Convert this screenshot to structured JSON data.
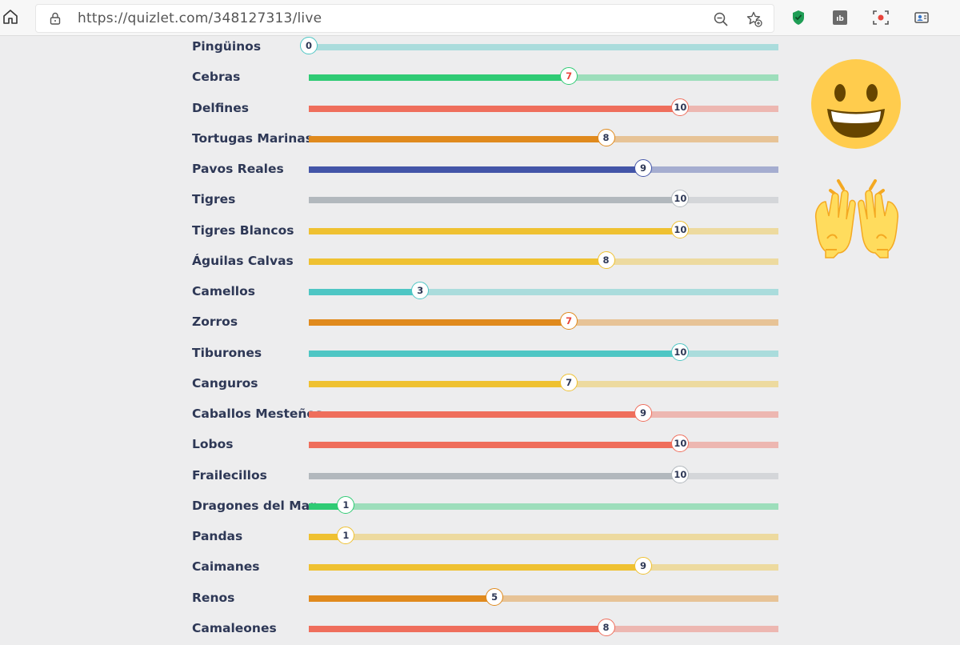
{
  "browser": {
    "url": "https://quizlet.com/348127313/live",
    "icons": [
      "home-icon",
      "lock-icon",
      "zoom-out-icon",
      "add-favorite-icon",
      "shield-extension-icon",
      "ab-extension-icon",
      "screen-record-icon",
      "profile-card-icon"
    ]
  },
  "leaderboard": {
    "max_score": 12.64,
    "teams": [
      {
        "name": "Pingüinos",
        "score": 0,
        "color": "#4ec6c4",
        "score_color": "#2e3856"
      },
      {
        "name": "Cebras",
        "score": 7,
        "color": "#2fcb74",
        "score_color": "#e8453c"
      },
      {
        "name": "Delfines",
        "score": 10,
        "color": "#ef6e5c",
        "score_color": "#2e3856"
      },
      {
        "name": "Tortugas Marinas",
        "score": 8,
        "color": "#e08a1d",
        "score_color": "#2e3856"
      },
      {
        "name": "Pavos Reales",
        "score": 9,
        "color": "#4355a8",
        "score_color": "#2e3856"
      },
      {
        "name": "Tigres",
        "score": 10,
        "color": "#b2b8bd",
        "score_color": "#2e3856"
      },
      {
        "name": "Tigres Blancos",
        "score": 10,
        "color": "#efc131",
        "score_color": "#2e3856"
      },
      {
        "name": "Águilas Calvas",
        "score": 8,
        "color": "#efc131",
        "score_color": "#2e3856"
      },
      {
        "name": "Camellos",
        "score": 3,
        "color": "#4ec6c4",
        "score_color": "#2e3856"
      },
      {
        "name": "Zorros",
        "score": 7,
        "color": "#e08a1d",
        "score_color": "#e8453c"
      },
      {
        "name": "Tiburones",
        "score": 10,
        "color": "#4ec6c4",
        "score_color": "#2e3856"
      },
      {
        "name": "Canguros",
        "score": 7,
        "color": "#efc131",
        "score_color": "#2e3856"
      },
      {
        "name": "Caballos Mesteños",
        "score": 9,
        "color": "#ef6e5c",
        "score_color": "#2e3856"
      },
      {
        "name": "Lobos",
        "score": 10,
        "color": "#ef6e5c",
        "score_color": "#2e3856"
      },
      {
        "name": "Frailecillos",
        "score": 10,
        "color": "#b2b8bd",
        "score_color": "#2e3856"
      },
      {
        "name": "Dragones del Mar",
        "score": 1,
        "color": "#2fcb74",
        "score_color": "#2e3856"
      },
      {
        "name": "Pandas",
        "score": 1,
        "color": "#efc131",
        "score_color": "#2e3856"
      },
      {
        "name": "Caimanes",
        "score": 9,
        "color": "#efc131",
        "score_color": "#2e3856"
      },
      {
        "name": "Renos",
        "score": 5,
        "color": "#e08a1d",
        "score_color": "#2e3856"
      },
      {
        "name": "Camaleones",
        "score": 8,
        "color": "#ef6e5c",
        "score_color": "#2e3856"
      }
    ]
  },
  "overlay": {
    "emojis": [
      "grinning-face-emoji",
      "raising-hands-emoji"
    ]
  }
}
